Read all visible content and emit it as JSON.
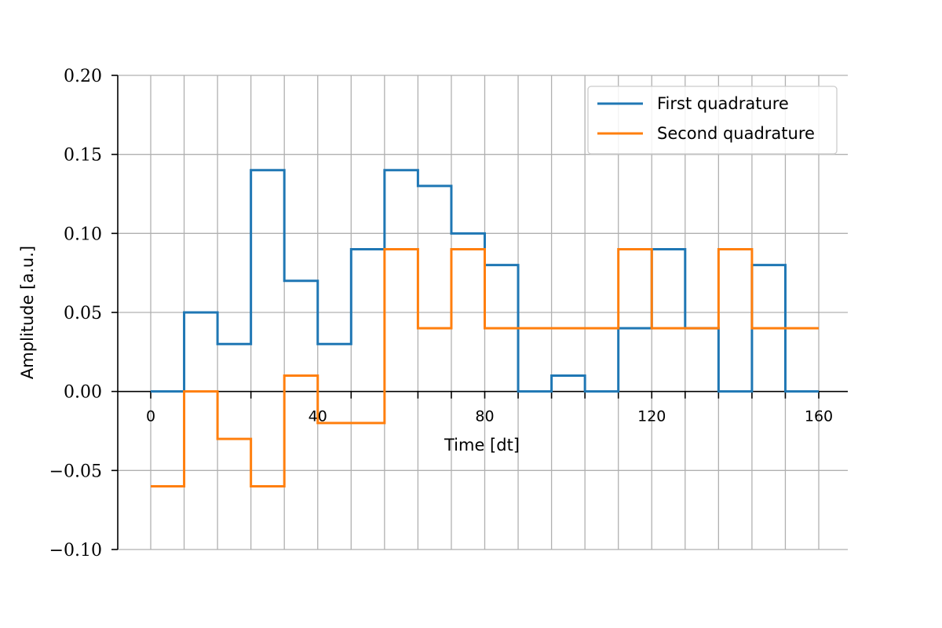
{
  "chart_data": {
    "type": "line",
    "step": "post",
    "xlabel": "Time [dt]",
    "ylabel": "Amplitude [a.u.]",
    "xlim": [
      -6,
      166
    ],
    "ylim": [
      -0.1,
      0.2
    ],
    "x_ticks": [
      0,
      40,
      80,
      120,
      160
    ],
    "x_tick_labels": [
      "0",
      "40",
      "80",
      "120",
      "160"
    ],
    "y_ticks": [
      -0.1,
      -0.05,
      0.0,
      0.05,
      0.1,
      0.15,
      0.2
    ],
    "y_tick_labels": [
      "−0.10",
      "−0.05",
      "0.00",
      "0.05",
      "0.10",
      "0.15",
      "0.20"
    ],
    "segment_boundaries": [
      0,
      8,
      16,
      24,
      32,
      40,
      48,
      56,
      64,
      72,
      80,
      88,
      96,
      104,
      112,
      120,
      128,
      136,
      144,
      152,
      160
    ],
    "grid": true,
    "legend_position": "top-right",
    "series": [
      {
        "name": "First quadrature",
        "color": "#1f77b4",
        "x": [
          0,
          8,
          16,
          24,
          32,
          40,
          48,
          56,
          64,
          72,
          80,
          88,
          96,
          104,
          112,
          120,
          128,
          136,
          144,
          152,
          160
        ],
        "values": [
          0.0,
          0.05,
          0.03,
          0.14,
          0.07,
          0.03,
          0.09,
          0.14,
          0.13,
          0.1,
          0.08,
          0.0,
          0.01,
          0.0,
          0.04,
          0.09,
          0.04,
          0.0,
          0.08,
          0.0,
          0.0
        ]
      },
      {
        "name": "Second quadrature",
        "color": "#ff7f0e",
        "x": [
          0,
          8,
          16,
          24,
          32,
          40,
          48,
          56,
          64,
          72,
          80,
          88,
          96,
          104,
          112,
          120,
          128,
          136,
          144,
          152,
          160
        ],
        "values": [
          -0.06,
          0.0,
          -0.03,
          -0.06,
          0.01,
          -0.02,
          -0.02,
          0.09,
          0.04,
          0.09,
          0.04,
          0.04,
          0.04,
          0.04,
          0.09,
          0.04,
          0.04,
          0.09,
          0.04,
          0.04,
          0.04
        ]
      }
    ]
  }
}
